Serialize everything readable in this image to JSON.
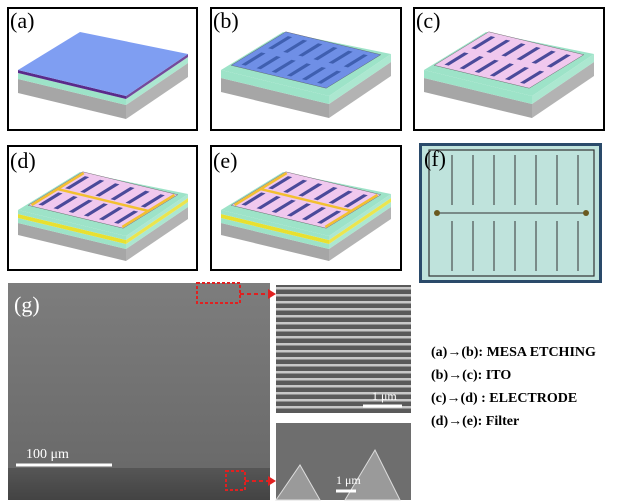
{
  "panels": [
    {
      "label": "(a)"
    },
    {
      "label": "(b)"
    },
    {
      "label": "(c)"
    },
    {
      "label": "(d)"
    },
    {
      "label": "(e)"
    },
    {
      "label": "(f)"
    },
    {
      "label": "(g)"
    }
  ],
  "scale_bars": {
    "main": "100 μm",
    "inset_top": "1 μm",
    "inset_bottom": "1 μm"
  },
  "process_steps": [
    "(a)→(b):  MESA ETCHING",
    "(b)→(c):  ITO",
    "(c)→(d) :  ELECTRODE",
    "(d)→(e):  Filter"
  ]
}
